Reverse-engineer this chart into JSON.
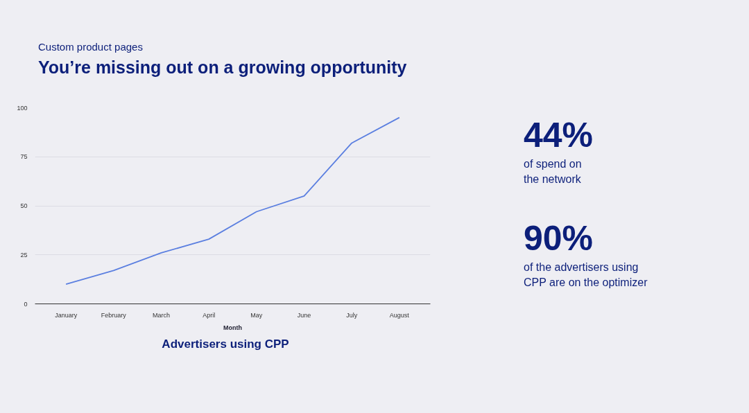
{
  "chart_data": {
    "type": "line",
    "subtitle": "Custom product pages",
    "title": "You’re missing out on a growing opportunity",
    "xlabel": "Month",
    "categories": [
      "January",
      "February",
      "March",
      "April",
      "May",
      "June",
      "July",
      "August"
    ],
    "series": [
      {
        "color": "#5b7fe0",
        "values": [
          10,
          17,
          26,
          33,
          47,
          55,
          82,
          95
        ]
      }
    ],
    "ylim": [
      0,
      100
    ],
    "yticks": [
      0,
      25,
      50,
      75,
      100
    ],
    "grid": "y",
    "marker": "none",
    "line_style": "solid",
    "annotations": [
      "Advertisers using CPP",
      "44%",
      "of spend on\nthe network",
      "90%",
      "of the advertisers using\nCPP are on the optimizer"
    ]
  }
}
